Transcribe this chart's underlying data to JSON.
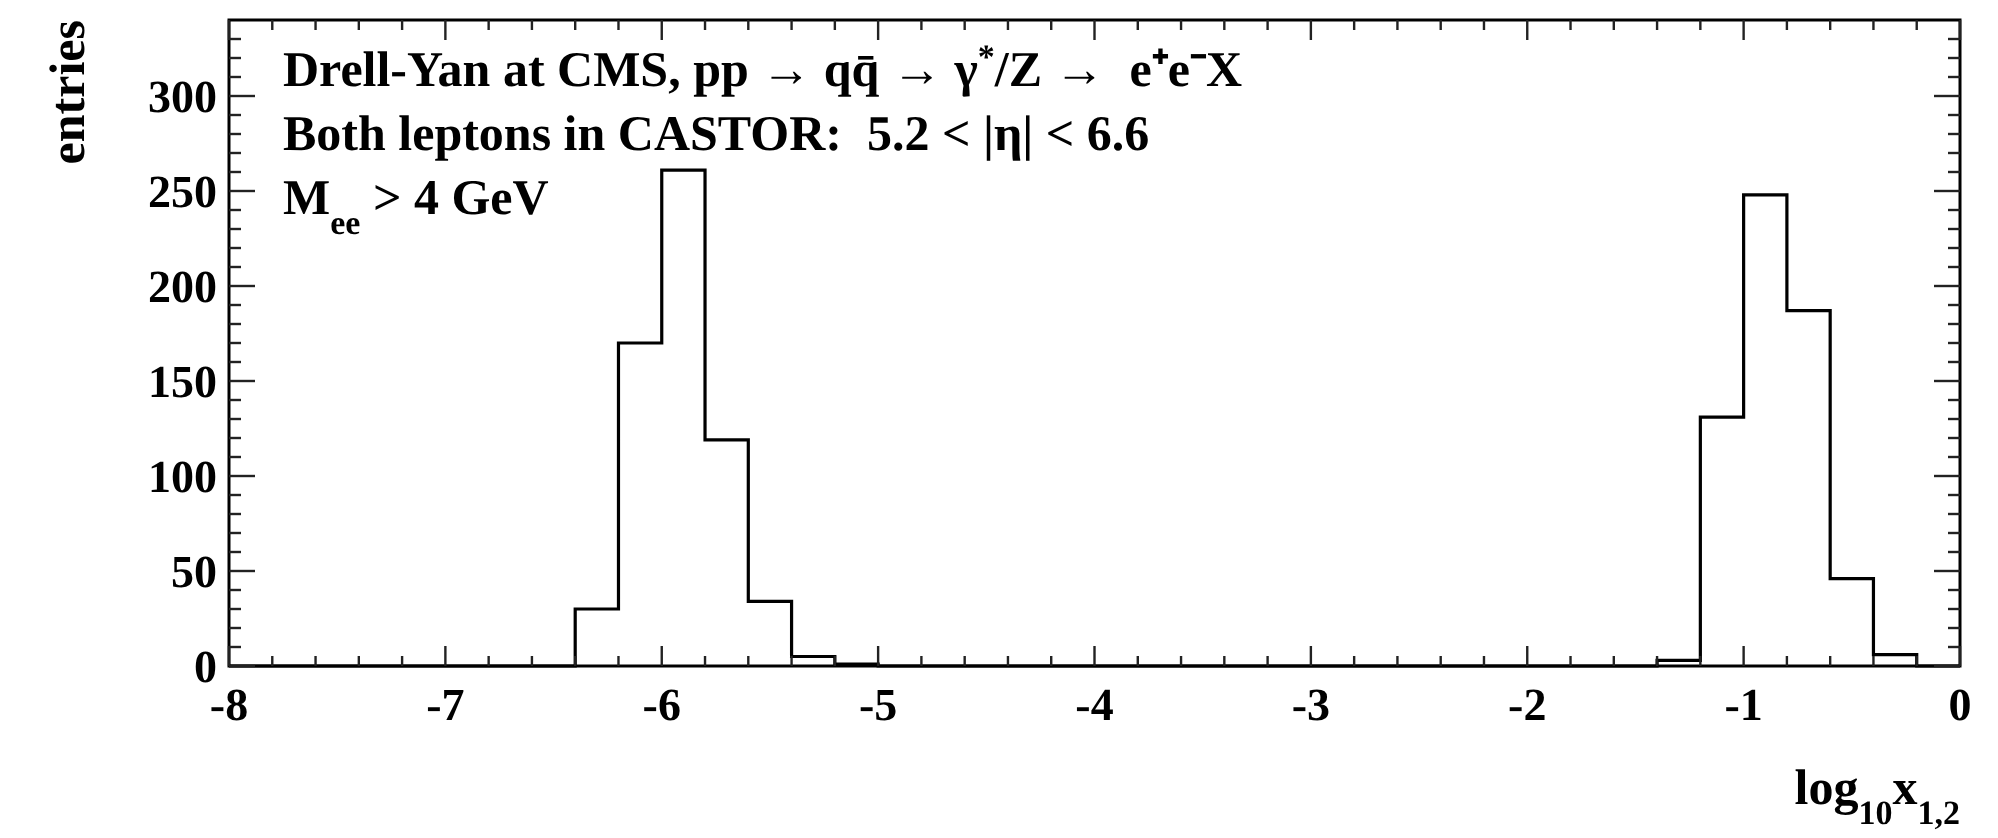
{
  "chart_data": {
    "type": "histogram",
    "xlabel": "log$_{10}$x$_{1,2}$",
    "ylabel": "entries",
    "annotations": [
      "Drell-Yan at CMS, pp → qq̄ → γ$^{*}$/Z →  e⁺e⁻X",
      "Both leptons in CASTOR:  5.2 < |η| < 6.6",
      "M$_{ee}$ > 4 GeV"
    ],
    "bins": [
      -8,
      -7.8,
      -7.6,
      -7.4,
      -7.2,
      -7,
      -6.8,
      -6.6,
      -6.4,
      -6.2,
      -6,
      -5.8,
      -5.6,
      -5.4,
      -5.2,
      -5,
      -4.8,
      -4.6,
      -4.4,
      -4.2,
      -4,
      -3.8,
      -3.6,
      -3.4,
      -3.2,
      -3,
      -2.8,
      -2.6,
      -2.4,
      -2.2,
      -2,
      -1.8,
      -1.6,
      -1.4,
      -1.2,
      -1,
      -0.8,
      -0.6,
      -0.4,
      -0.2,
      0
    ],
    "values": [
      0,
      0,
      0,
      0,
      0,
      0,
      0,
      0,
      30,
      170,
      261,
      119,
      34,
      5,
      1,
      0,
      0,
      0,
      0,
      0,
      0,
      0,
      0,
      0,
      0,
      0,
      0,
      0,
      0,
      0,
      0,
      0,
      0,
      3,
      131,
      248,
      187,
      46,
      6,
      0
    ],
    "color": "#000000",
    "xlim": [
      -8,
      0
    ],
    "xticks": [
      -8,
      {
        "value": -7.8,
        "label": null
      },
      {
        "value": -7.6,
        "label": null
      },
      {
        "value": -7.4,
        "label": null
      },
      {
        "value": -7.2,
        "label": null
      },
      -7,
      {
        "value": -6.8,
        "label": null
      },
      {
        "value": -6.6,
        "label": null
      },
      {
        "value": -6.4,
        "label": null
      },
      {
        "value": -6.2,
        "label": null
      },
      -6,
      {
        "value": -5.8,
        "label": null
      },
      {
        "value": -5.6,
        "label": null
      },
      {
        "value": -5.4,
        "label": null
      },
      {
        "value": -5.2,
        "label": null
      },
      -5,
      {
        "value": -4.8,
        "label": null
      },
      {
        "value": -4.6,
        "label": null
      },
      {
        "value": -4.4,
        "label": null
      },
      {
        "value": -4.2,
        "label": null
      },
      -4,
      {
        "value": -3.8,
        "label": null
      },
      {
        "value": -3.6,
        "label": null
      },
      {
        "value": -3.4,
        "label": null
      },
      {
        "value": -3.2,
        "label": null
      },
      -3,
      {
        "value": -2.8,
        "label": null
      },
      {
        "value": -2.6,
        "label": null
      },
      {
        "value": -2.4,
        "label": null
      },
      {
        "value": -2.2,
        "label": null
      },
      -2,
      {
        "value": -1.8,
        "label": null
      },
      {
        "value": -1.6,
        "label": null
      },
      {
        "value": -1.4,
        "label": null
      },
      {
        "value": -1.2,
        "label": null
      },
      -1,
      {
        "value": -0.8,
        "label": null
      },
      {
        "value": -0.6,
        "label": null
      },
      {
        "value": -0.4,
        "label": null
      },
      {
        "value": -0.2,
        "label": null
      },
      0
    ],
    "ylim": [
      0,
      340
    ],
    "yticks": [
      0,
      {
        "value": 10,
        "label": null
      },
      {
        "value": 20,
        "label": null
      },
      {
        "value": 30,
        "label": null
      },
      {
        "value": 40,
        "label": null
      },
      50,
      {
        "value": 60,
        "label": null
      },
      {
        "value": 70,
        "label": null
      },
      {
        "value": 80,
        "label": null
      },
      {
        "value": 90,
        "label": null
      },
      100,
      {
        "value": 110,
        "label": null
      },
      {
        "value": 120,
        "label": null
      },
      {
        "value": 130,
        "label": null
      },
      {
        "value": 140,
        "label": null
      },
      150,
      {
        "value": 160,
        "label": null
      },
      {
        "value": 170,
        "label": null
      },
      {
        "value": 180,
        "label": null
      },
      {
        "value": 190,
        "label": null
      },
      200,
      {
        "value": 210,
        "label": null
      },
      {
        "value": 220,
        "label": null
      },
      {
        "value": 230,
        "label": null
      },
      {
        "value": 240,
        "label": null
      },
      250,
      {
        "value": 260,
        "label": null
      },
      {
        "value": 270,
        "label": null
      },
      {
        "value": 280,
        "label": null
      },
      {
        "value": 290,
        "label": null
      },
      300,
      {
        "value": 310,
        "label": null
      },
      {
        "value": 320,
        "label": null
      },
      {
        "value": 330,
        "label": null
      }
    ]
  }
}
